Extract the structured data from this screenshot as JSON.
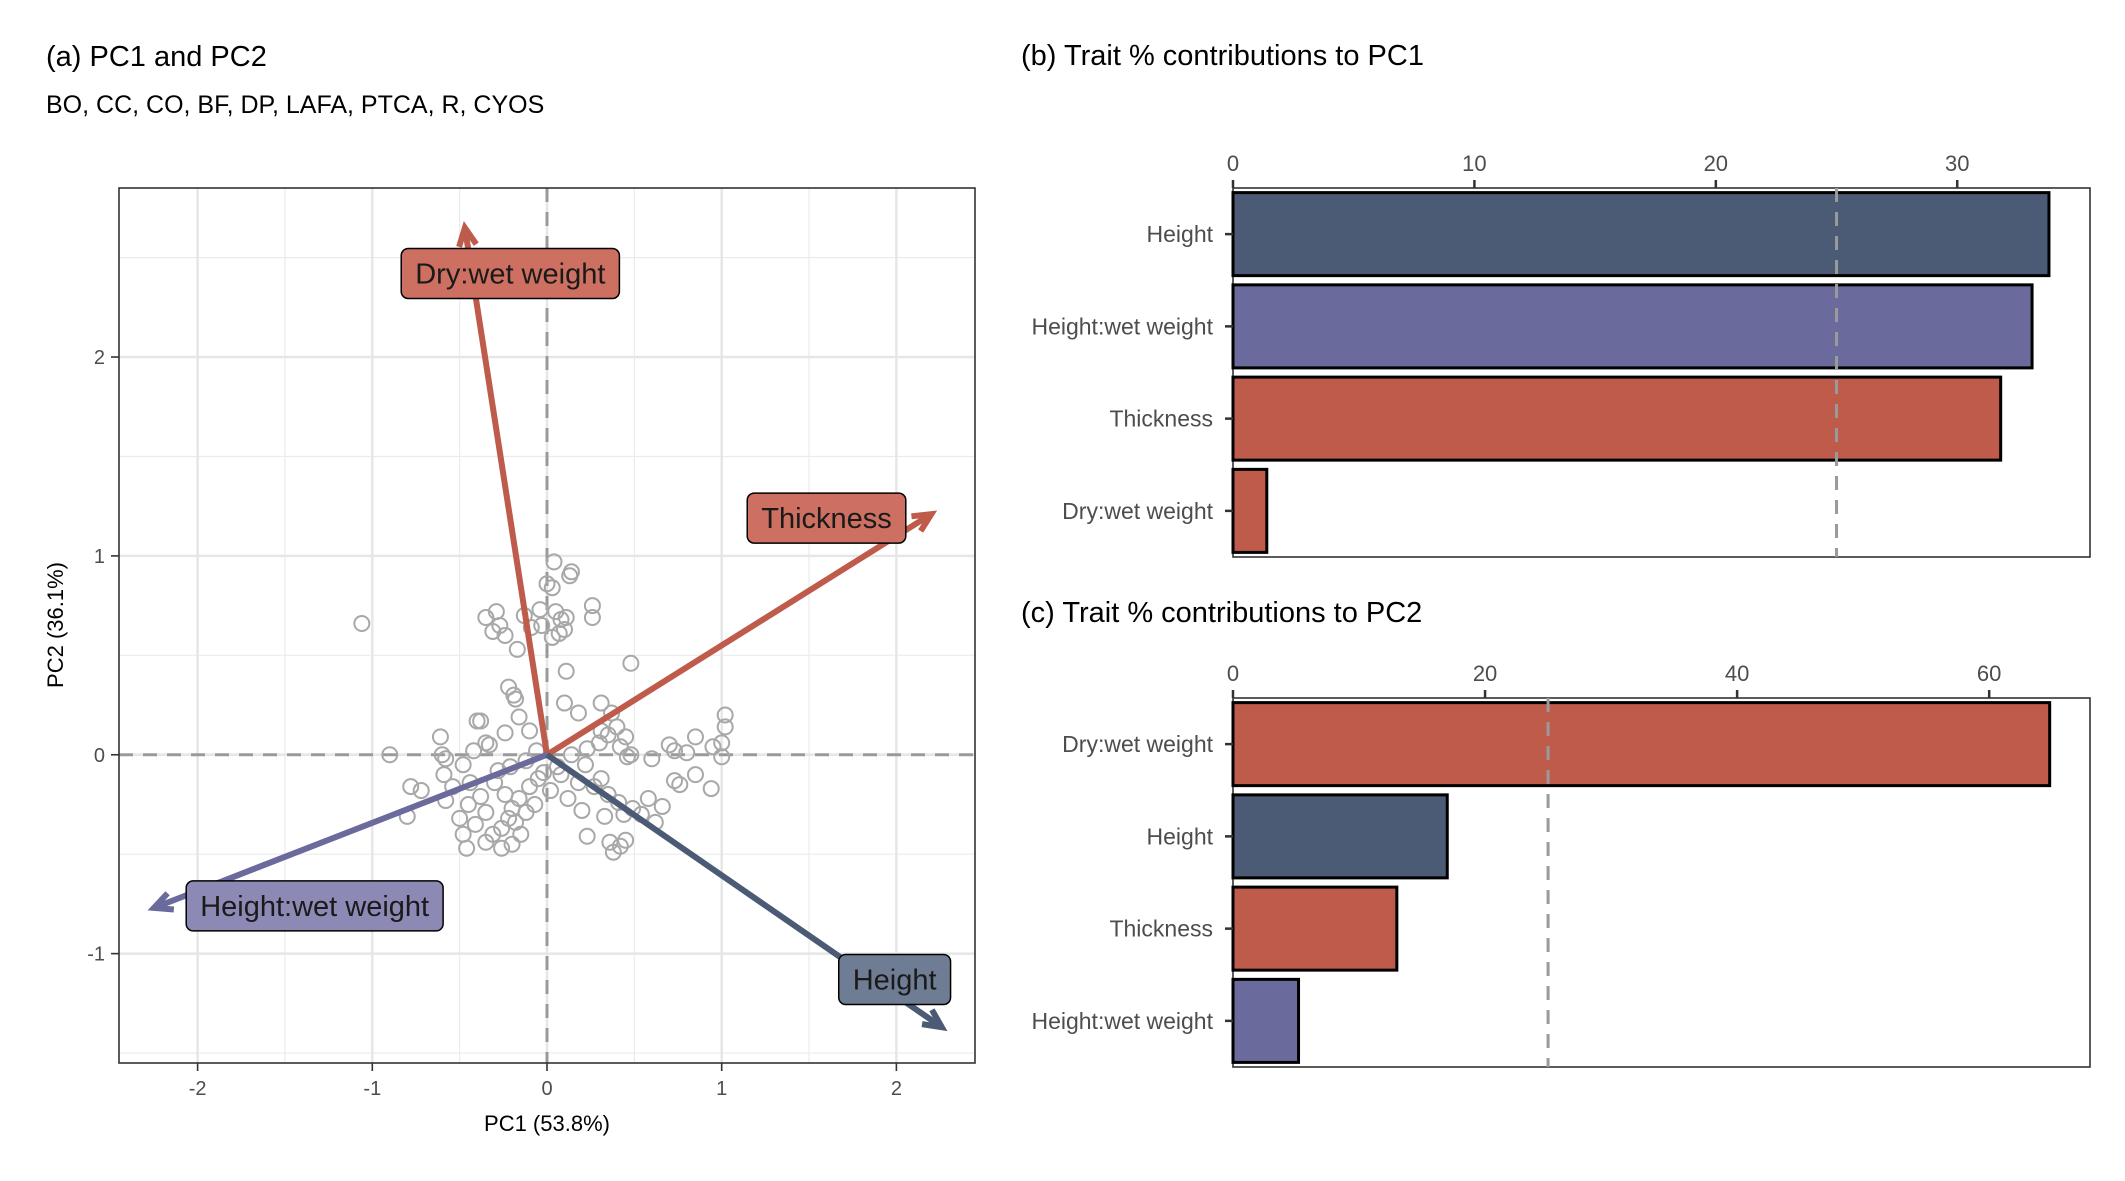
{
  "colors": {
    "Height": "#4b5a75",
    "Height:wet weight": "#6a6a9c",
    "Thickness": "#bf5b4a",
    "Dry:wet weight": "#bf5b4a",
    "label_Height": "#6f7d94",
    "label_Height:wet weight": "#8c8ab5",
    "label_Thickness": "#cd6f61",
    "label_Dry:wet weight": "#cd6f61",
    "points": "#a8a8a8",
    "grid": "#ebebeb",
    "reference_line": "#9a9a9a"
  },
  "chart_data": [
    {
      "panel": "a",
      "type": "scatter",
      "title": "(a) PC1 and PC2",
      "subtitle": "BO, CC, CO, BF, DP, LAFA, PTCA, R, CYOS",
      "xlabel": "PC1 (53.8%)",
      "ylabel": "PC2 (36.1%)",
      "xlim": [
        -2.45,
        2.45
      ],
      "ylim": [
        -1.55,
        2.85
      ],
      "x_ticks": [
        -2,
        -1,
        0,
        1,
        2
      ],
      "x_tick_labels": [
        "-2",
        "-1",
        "0",
        "1",
        "2"
      ],
      "y_ticks": [
        -1,
        0,
        1,
        2
      ],
      "y_tick_labels": [
        "-1",
        "0",
        "1",
        "2"
      ],
      "grid": true,
      "reference_lines": {
        "x": 0,
        "y": 0,
        "style": "dashed"
      },
      "loadings": [
        {
          "name": "Dry:wet weight",
          "x": -0.47,
          "y": 2.65,
          "label_x": -0.21,
          "label_y": 2.42
        },
        {
          "name": "Thickness",
          "x": 2.2,
          "y": 1.21,
          "label_x": 1.6,
          "label_y": 1.19
        },
        {
          "name": "Height:wet weight",
          "x": -2.25,
          "y": -0.77,
          "label_x": -1.33,
          "label_y": -0.76
        },
        {
          "name": "Height",
          "x": 2.26,
          "y": -1.37,
          "label_x": 1.99,
          "label_y": -1.13
        }
      ],
      "points": [
        [
          -1.06,
          0.66
        ],
        [
          0.04,
          0.97
        ],
        [
          0.14,
          0.92
        ],
        [
          0.13,
          0.9
        ],
        [
          -0.35,
          0.69
        ],
        [
          -0.29,
          0.72
        ],
        [
          -0.13,
          0.7
        ],
        [
          -0.04,
          0.73
        ],
        [
          0.0,
          0.86
        ],
        [
          0.03,
          0.84
        ],
        [
          0.08,
          0.68
        ],
        [
          0.05,
          0.72
        ],
        [
          0.11,
          0.69
        ],
        [
          0.26,
          0.75
        ],
        [
          0.26,
          0.69
        ],
        [
          -0.31,
          0.62
        ],
        [
          -0.24,
          0.6
        ],
        [
          -0.27,
          0.65
        ],
        [
          -0.17,
          0.53
        ],
        [
          -0.09,
          0.64
        ],
        [
          -0.03,
          0.65
        ],
        [
          0.03,
          0.59
        ],
        [
          0.07,
          0.61
        ],
        [
          0.1,
          0.63
        ],
        [
          0.11,
          0.42
        ],
        [
          0.48,
          0.46
        ],
        [
          -0.19,
          0.3
        ],
        [
          -0.18,
          0.28
        ],
        [
          -0.38,
          0.17
        ],
        [
          0.1,
          0.26
        ],
        [
          0.18,
          0.21
        ],
        [
          0.31,
          0.26
        ],
        [
          0.37,
          0.21
        ],
        [
          0.35,
          0.1
        ],
        [
          0.4,
          0.14
        ],
        [
          0.45,
          0.09
        ],
        [
          -0.9,
          0.0
        ],
        [
          -0.61,
          0.09
        ],
        [
          -0.6,
          0.0
        ],
        [
          -0.58,
          -0.02
        ],
        [
          -0.42,
          0.02
        ],
        [
          -0.35,
          0.06
        ],
        [
          -0.33,
          0.05
        ],
        [
          -0.24,
          0.11
        ],
        [
          -0.16,
          0.19
        ],
        [
          0.23,
          0.03
        ],
        [
          0.3,
          0.06
        ],
        [
          0.42,
          0.04
        ],
        [
          0.46,
          -0.01
        ],
        [
          0.48,
          0.0
        ],
        [
          0.6,
          -0.02
        ],
        [
          0.7,
          0.05
        ],
        [
          0.73,
          0.02
        ],
        [
          0.8,
          0.01
        ],
        [
          0.85,
          0.09
        ],
        [
          0.95,
          0.04
        ],
        [
          1.0,
          0.06
        ],
        [
          1.02,
          0.14
        ],
        [
          1.02,
          0.2
        ],
        [
          1.0,
          -0.01
        ],
        [
          -0.78,
          -0.16
        ],
        [
          -0.72,
          -0.18
        ],
        [
          -0.59,
          -0.1
        ],
        [
          -0.48,
          -0.05
        ],
        [
          -0.44,
          -0.14
        ],
        [
          -0.54,
          -0.16
        ],
        [
          -0.58,
          -0.23
        ],
        [
          -0.45,
          -0.25
        ],
        [
          -0.38,
          -0.21
        ],
        [
          -0.3,
          -0.14
        ],
        [
          -0.24,
          -0.2
        ],
        [
          -0.2,
          -0.27
        ],
        [
          -0.16,
          -0.22
        ],
        [
          -0.1,
          -0.16
        ],
        [
          -0.05,
          -0.12
        ],
        [
          0.02,
          -0.18
        ],
        [
          0.08,
          -0.1
        ],
        [
          0.12,
          -0.22
        ],
        [
          0.2,
          -0.28
        ],
        [
          0.27,
          -0.16
        ],
        [
          0.31,
          -0.12
        ],
        [
          0.35,
          -0.2
        ],
        [
          0.41,
          -0.24
        ],
        [
          0.44,
          -0.3
        ],
        [
          0.49,
          -0.27
        ],
        [
          0.54,
          -0.3
        ],
        [
          0.58,
          -0.22
        ],
        [
          0.62,
          -0.34
        ],
        [
          0.66,
          -0.26
        ],
        [
          0.73,
          -0.13
        ],
        [
          0.85,
          -0.1
        ],
        [
          0.76,
          -0.15
        ],
        [
          0.94,
          -0.17
        ],
        [
          -0.8,
          -0.31
        ],
        [
          -0.5,
          -0.32
        ],
        [
          -0.48,
          -0.4
        ],
        [
          -0.41,
          -0.35
        ],
        [
          -0.35,
          -0.29
        ],
        [
          -0.31,
          -0.4
        ],
        [
          -0.26,
          -0.37
        ],
        [
          -0.22,
          -0.32
        ],
        [
          -0.18,
          -0.34
        ],
        [
          -0.12,
          -0.29
        ],
        [
          -0.07,
          -0.25
        ],
        [
          0.23,
          -0.41
        ],
        [
          0.36,
          -0.44
        ],
        [
          0.38,
          -0.49
        ],
        [
          0.42,
          -0.46
        ],
        [
          0.45,
          -0.43
        ],
        [
          -0.26,
          -0.47
        ],
        [
          -0.35,
          -0.44
        ],
        [
          -0.46,
          -0.47
        ],
        [
          -0.2,
          -0.45
        ],
        [
          -0.15,
          -0.4
        ],
        [
          0.33,
          -0.31
        ],
        [
          0.18,
          -0.14
        ],
        [
          0.06,
          -0.06
        ],
        [
          -0.02,
          -0.09
        ],
        [
          -0.28,
          -0.08
        ],
        [
          -0.21,
          -0.06
        ],
        [
          -0.12,
          -0.03
        ],
        [
          0.14,
          0.0
        ],
        [
          0.22,
          -0.05
        ],
        [
          -0.4,
          0.17
        ],
        [
          -0.22,
          0.34
        ],
        [
          -0.1,
          0.12
        ],
        [
          0.31,
          0.12
        ],
        [
          -0.06,
          0.02
        ]
      ]
    },
    {
      "panel": "b",
      "type": "bar",
      "orientation": "horizontal",
      "title": "(b) Trait % contributions to PC1",
      "categories": [
        "Height",
        "Height:wet weight",
        "Thickness",
        "Dry:wet weight"
      ],
      "values": [
        33.8,
        33.1,
        31.8,
        1.4
      ],
      "xlim": [
        0,
        35.5
      ],
      "x_ticks": [
        0,
        10,
        20,
        30
      ],
      "x_tick_labels": [
        "0",
        "10",
        "20",
        "30"
      ],
      "axis_position": "top",
      "reference_line": 25
    },
    {
      "panel": "c",
      "type": "bar",
      "orientation": "horizontal",
      "title": "(c) Trait % contributions to PC2",
      "categories": [
        "Dry:wet weight",
        "Height",
        "Thickness",
        "Height:wet weight"
      ],
      "values": [
        64.8,
        17.0,
        13.0,
        5.2
      ],
      "xlim": [
        0,
        68
      ],
      "x_ticks": [
        0,
        20,
        40,
        60
      ],
      "x_tick_labels": [
        "0",
        "20",
        "40",
        "60"
      ],
      "axis_position": "top",
      "reference_line": 25
    }
  ]
}
